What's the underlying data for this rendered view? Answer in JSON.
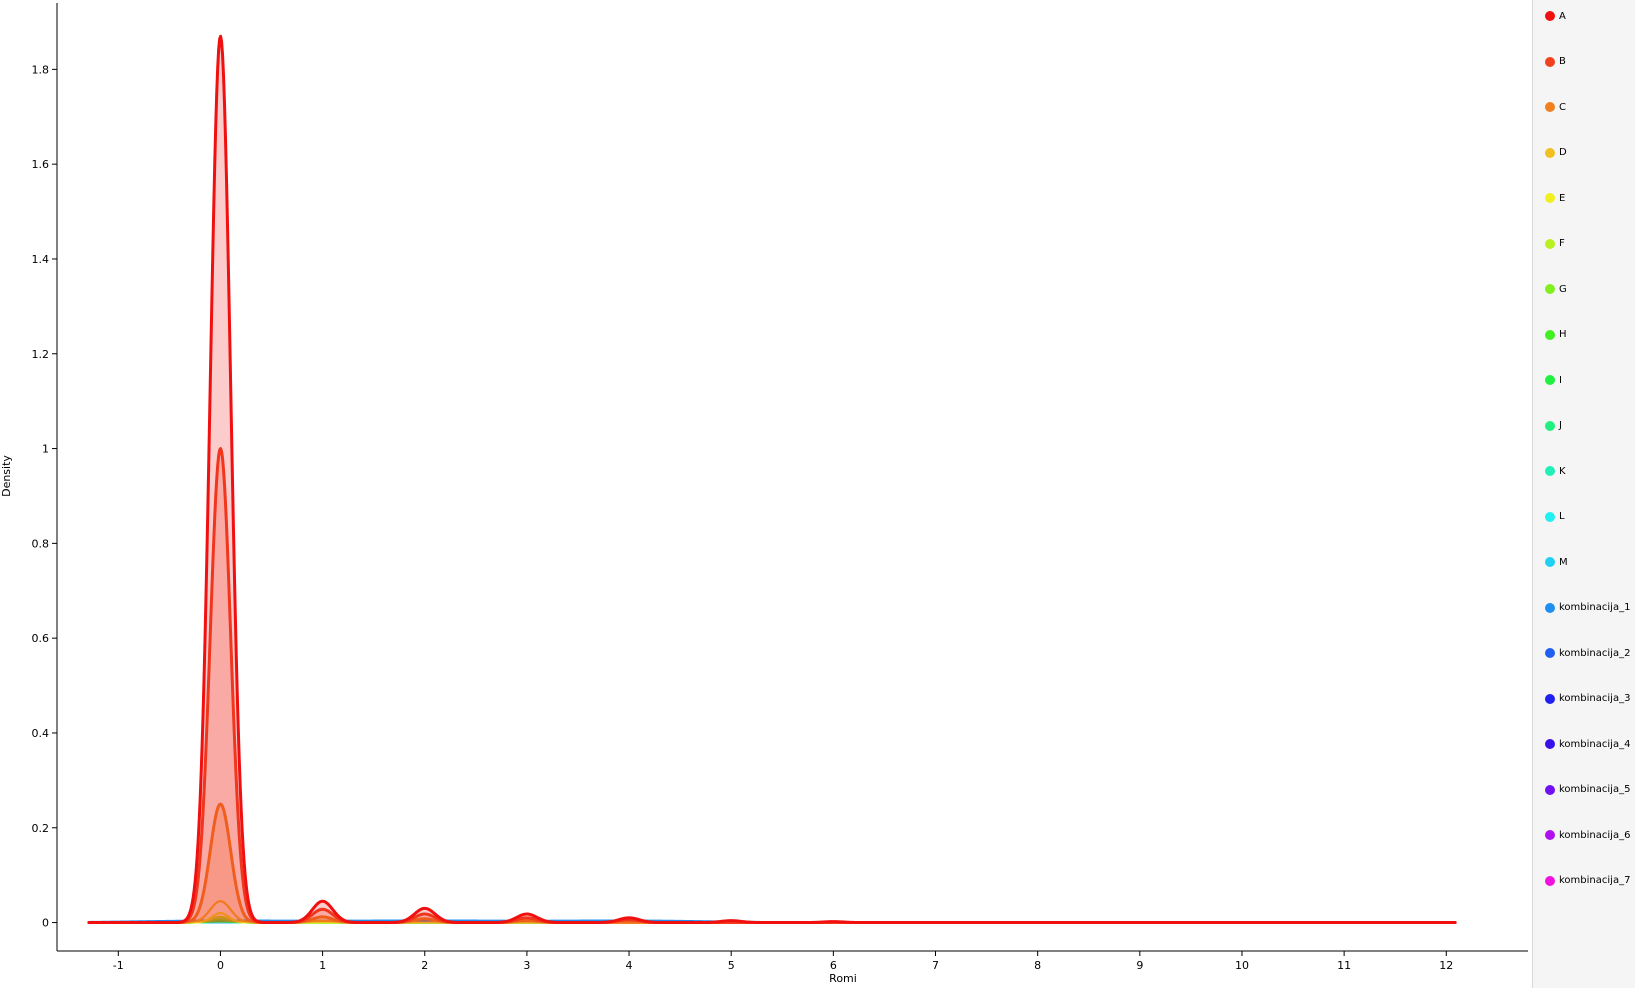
{
  "chart_data": {
    "type": "area",
    "title": "",
    "xlabel": "Romi",
    "ylabel": "Density",
    "xlim": [
      -1.6,
      12.8
    ],
    "ylim": [
      -0.06,
      1.94
    ],
    "xticks": [
      -1,
      0,
      1,
      2,
      3,
      4,
      5,
      6,
      7,
      8,
      9,
      10,
      11,
      12
    ],
    "yticks": [
      0,
      0.2,
      0.4,
      0.6,
      0.8,
      1,
      1.2,
      1.4,
      1.6,
      1.8
    ],
    "x_range": [
      -1.3,
      12.1
    ],
    "legend_position": "right",
    "grid": false,
    "series": [
      {
        "name": "A",
        "color": "#f01010",
        "peaks": [
          [
            0,
            1.87
          ],
          [
            1,
            0.045
          ],
          [
            2,
            0.03
          ],
          [
            3,
            0.018
          ],
          [
            4,
            0.01
          ],
          [
            5,
            0.004
          ],
          [
            6,
            0.002
          ]
        ],
        "width": 0.1,
        "filled": true
      },
      {
        "name": "B",
        "color": "#f04020",
        "peaks": [
          [
            0,
            1.0
          ],
          [
            1,
            0.028
          ],
          [
            2,
            0.018
          ],
          [
            3,
            0.01
          ],
          [
            4,
            0.006
          ]
        ],
        "width": 0.1,
        "filled": true
      },
      {
        "name": "C",
        "color": "#f08020",
        "peaks": [
          [
            0,
            0.25
          ],
          [
            1,
            0.012
          ],
          [
            2,
            0.008
          ],
          [
            3,
            0.004
          ]
        ],
        "width": 0.1,
        "filled": true
      },
      {
        "name": "D",
        "color": "#f0c020",
        "peaks": [
          [
            0,
            0.045
          ],
          [
            1,
            0.004
          ]
        ],
        "width": 0.1,
        "filled": false
      },
      {
        "name": "E",
        "color": "#f0f020",
        "peaks": [
          [
            0,
            0.02
          ]
        ],
        "width": 0.08,
        "filled": false
      },
      {
        "name": "F",
        "color": "#b8f020",
        "peaks": [
          [
            0,
            0.012
          ]
        ],
        "width": 0.1,
        "filled": false
      },
      {
        "name": "G",
        "color": "#80f020",
        "peaks": [
          [
            0,
            0.008
          ]
        ],
        "width": 0.1,
        "filled": false
      },
      {
        "name": "H",
        "color": "#40f020",
        "peaks": [
          [
            0,
            0.006
          ]
        ],
        "width": 0.1,
        "filled": false
      },
      {
        "name": "I",
        "color": "#20f040",
        "peaks": [
          [
            0,
            0.003
          ]
        ],
        "width": 0.12,
        "filled": false
      },
      {
        "name": "J",
        "color": "#20f080",
        "peaks": [
          [
            0,
            0.002
          ]
        ],
        "width": 0.12,
        "filled": false
      },
      {
        "name": "K",
        "color": "#20f0b8",
        "peaks": [
          [
            0,
            0.002
          ]
        ],
        "width": 0.12,
        "filled": false
      },
      {
        "name": "L",
        "color": "#20f0f0",
        "peaks": [
          [
            0,
            0.001
          ]
        ],
        "width": 0.15,
        "filled": false
      },
      {
        "name": "M",
        "color": "#20d0f0",
        "peaks": [
          [
            0,
            0.001
          ]
        ],
        "width": 0.15,
        "filled": false
      },
      {
        "name": "kombinacija_1",
        "color": "#2090f0",
        "peaks": [
          [
            0,
            0.004
          ],
          [
            2,
            0.004
          ],
          [
            4,
            0.004
          ]
        ],
        "width": 0.8,
        "filled": false
      },
      {
        "name": "kombinacija_2",
        "color": "#2060f0",
        "peaks": [
          [
            0,
            0.002
          ]
        ],
        "width": 0.8,
        "filled": false
      },
      {
        "name": "kombinacija_3",
        "color": "#2020f0",
        "peaks": [
          [
            0,
            0.001
          ]
        ],
        "width": 0.8,
        "filled": false
      },
      {
        "name": "kombinacija_4",
        "color": "#3a10e8",
        "peaks": [
          [
            0,
            0.001
          ]
        ],
        "width": 0.8,
        "filled": false
      },
      {
        "name": "kombinacija_5",
        "color": "#7010f0",
        "peaks": [
          [
            0,
            0.001
          ]
        ],
        "width": 0.8,
        "filled": false
      },
      {
        "name": "kombinacija_6",
        "color": "#b010f0",
        "peaks": [
          [
            0,
            0.001
          ]
        ],
        "width": 0.8,
        "filled": false
      },
      {
        "name": "kombinacija_7",
        "color": "#f010e0",
        "peaks": [
          [
            0,
            0.001
          ]
        ],
        "width": 0.8,
        "filled": false
      }
    ]
  }
}
